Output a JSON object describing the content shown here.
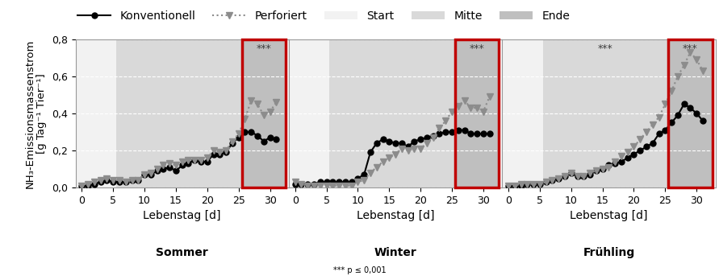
{
  "chart_data": [
    {
      "type": "line",
      "title": "Sommer",
      "x_label": "Lebenstag [d]",
      "y_label": "NH₃-Emissionsmassenstrom\n[g Tag⁻¹ Tier⁻¹]",
      "x": [
        0,
        1,
        2,
        3,
        4,
        5,
        6,
        7,
        8,
        9,
        10,
        11,
        12,
        13,
        14,
        15,
        16,
        17,
        18,
        19,
        20,
        21,
        22,
        23,
        24,
        25,
        26,
        27,
        28,
        29,
        30,
        31
      ],
      "series": [
        {
          "name": "Konventionell",
          "color": "#000000",
          "marker": "o",
          "line_style": "solid",
          "values": [
            0.01,
            0.01,
            0.02,
            0.03,
            0.04,
            0.03,
            0.03,
            0.03,
            0.04,
            0.04,
            0.07,
            0.07,
            0.09,
            0.1,
            0.11,
            0.09,
            0.12,
            0.13,
            0.15,
            0.14,
            0.14,
            0.18,
            0.18,
            0.19,
            0.24,
            0.27,
            0.3,
            0.3,
            0.28,
            0.25,
            0.27,
            0.26
          ]
        },
        {
          "name": "Perforiert",
          "color": "#8c8c8c",
          "marker": "v",
          "line_style": "dotted",
          "values": [
            0.01,
            0.02,
            0.03,
            0.04,
            0.05,
            0.04,
            0.04,
            0.03,
            0.04,
            0.04,
            0.07,
            0.08,
            0.1,
            0.12,
            0.13,
            0.12,
            0.14,
            0.15,
            0.15,
            0.15,
            0.16,
            0.2,
            0.19,
            0.2,
            0.25,
            0.29,
            0.37,
            0.47,
            0.45,
            0.39,
            0.41,
            0.46
          ]
        }
      ],
      "phases": [
        {
          "name": "Start",
          "color": "#f2f2f2",
          "start": -1,
          "end": 5.5
        },
        {
          "name": "Mitte",
          "color": "#d9d9d9",
          "start": 5.5,
          "end": 25.5
        },
        {
          "name": "Ende",
          "color": "#bfbfbf",
          "start": 25.5,
          "end": 32.5
        }
      ],
      "annotations": [
        {
          "text": "***",
          "phase": "Ende"
        }
      ],
      "xlim": [
        -1,
        33
      ],
      "xticks": [
        0,
        5,
        10,
        15,
        20,
        25,
        30
      ],
      "ylim": [
        0,
        0.8
      ],
      "yticks": [
        {
          "value": 0,
          "label": "0,0"
        },
        {
          "value": 0.2,
          "label": "0,2"
        },
        {
          "value": 0.4,
          "label": "0,4"
        },
        {
          "value": 0.6,
          "label": "0,6"
        },
        {
          "value": 0.8,
          "label": "0,8"
        }
      ],
      "grid": true,
      "legend": "upper center",
      "tick_labels": true
    },
    {
      "type": "line",
      "title": "Winter",
      "x_label": "Lebenstag [d]",
      "x": [
        0,
        1,
        2,
        3,
        4,
        5,
        6,
        7,
        8,
        9,
        10,
        11,
        12,
        13,
        14,
        15,
        16,
        17,
        18,
        19,
        20,
        21,
        22,
        23,
        24,
        25,
        26,
        27,
        28,
        29,
        30,
        31
      ],
      "series": [
        {
          "name": "Konventionell",
          "color": "#000000",
          "marker": "o",
          "line_style": "solid",
          "values": [
            0.02,
            0.02,
            0.02,
            0.02,
            0.03,
            0.03,
            0.03,
            0.03,
            0.03,
            0.03,
            0.05,
            0.07,
            0.19,
            0.24,
            0.26,
            0.25,
            0.24,
            0.24,
            0.22,
            0.25,
            0.26,
            0.27,
            0.28,
            0.29,
            0.3,
            0.3,
            0.31,
            0.31,
            0.29,
            0.29,
            0.29,
            0.29
          ]
        },
        {
          "name": "Perforiert",
          "color": "#8c8c8c",
          "marker": "v",
          "line_style": "dotted",
          "values": [
            0.03,
            0.02,
            0.01,
            0.01,
            0.01,
            0.01,
            0.01,
            0.01,
            0.01,
            0.01,
            0.03,
            0.04,
            0.08,
            0.11,
            0.14,
            0.16,
            0.18,
            0.21,
            0.2,
            0.21,
            0.21,
            0.24,
            0.27,
            0.32,
            0.36,
            0.41,
            0.44,
            0.47,
            0.43,
            0.43,
            0.41,
            0.49
          ]
        }
      ],
      "phases": [
        {
          "name": "Start",
          "color": "#f2f2f2",
          "start": -1,
          "end": 5.5
        },
        {
          "name": "Mitte",
          "color": "#d9d9d9",
          "start": 5.5,
          "end": 25.5
        },
        {
          "name": "Ende",
          "color": "#bfbfbf",
          "start": 25.5,
          "end": 32.5
        }
      ],
      "annotations": [
        {
          "text": "***",
          "phase": "Ende"
        }
      ],
      "xlim": [
        -1,
        33
      ],
      "xticks": [
        0,
        5,
        10,
        15,
        20,
        25,
        30
      ],
      "ylim": [
        0,
        0.8
      ],
      "yticks": [
        {
          "value": 0,
          "label": "0,0"
        },
        {
          "value": 0.2,
          "label": "0,2"
        },
        {
          "value": 0.4,
          "label": "0,4"
        },
        {
          "value": 0.6,
          "label": "0,6"
        },
        {
          "value": 0.8,
          "label": "0,8"
        }
      ],
      "grid": true,
      "tick_labels": "x"
    },
    {
      "type": "line",
      "title": "Frühling",
      "x_label": "Lebenstag [d]",
      "x": [
        0,
        1,
        2,
        3,
        4,
        5,
        6,
        7,
        8,
        9,
        10,
        11,
        12,
        13,
        14,
        15,
        16,
        17,
        18,
        19,
        20,
        21,
        22,
        23,
        24,
        25,
        26,
        27,
        28,
        29,
        30,
        31
      ],
      "series": [
        {
          "name": "Konventionell",
          "color": "#000000",
          "marker": "o",
          "line_style": "solid",
          "values": [
            0.01,
            0.01,
            0.01,
            0.02,
            0.02,
            0.02,
            0.03,
            0.04,
            0.05,
            0.06,
            0.08,
            0.06,
            0.06,
            0.07,
            0.09,
            0.1,
            0.12,
            0.13,
            0.14,
            0.16,
            0.18,
            0.2,
            0.22,
            0.24,
            0.29,
            0.31,
            0.35,
            0.39,
            0.45,
            0.43,
            0.4,
            0.36
          ]
        },
        {
          "name": "Perforiert",
          "color": "#8c8c8c",
          "marker": "v",
          "line_style": "dotted",
          "values": [
            0.01,
            0.01,
            0.02,
            0.02,
            0.02,
            0.02,
            0.03,
            0.04,
            0.05,
            0.06,
            0.08,
            0.06,
            0.06,
            0.08,
            0.09,
            0.1,
            0.11,
            0.14,
            0.17,
            0.19,
            0.22,
            0.26,
            0.3,
            0.34,
            0.38,
            0.45,
            0.52,
            0.6,
            0.66,
            0.73,
            0.69,
            0.63
          ]
        }
      ],
      "phases": [
        {
          "name": "Start",
          "color": "#f2f2f2",
          "start": -1,
          "end": 5.5
        },
        {
          "name": "Mitte",
          "color": "#d9d9d9",
          "start": 5.5,
          "end": 25.5
        },
        {
          "name": "Ende",
          "color": "#bfbfbf",
          "start": 25.5,
          "end": 32.5
        }
      ],
      "annotations": [
        {
          "text": "***",
          "phase": "Mitte"
        },
        {
          "text": "***",
          "phase": "Ende"
        }
      ],
      "xlim": [
        -1,
        33
      ],
      "xticks": [
        0,
        5,
        10,
        15,
        20,
        25,
        30
      ],
      "ylim": [
        0,
        0.8
      ],
      "yticks": [
        {
          "value": 0,
          "label": "0,0"
        },
        {
          "value": 0.2,
          "label": "0,2"
        },
        {
          "value": 0.4,
          "label": "0,4"
        },
        {
          "value": 0.6,
          "label": "0,6"
        },
        {
          "value": 0.8,
          "label": "0,8"
        }
      ],
      "grid": true,
      "tick_labels": "x"
    }
  ],
  "footnote": "*** p ≤ 0,001"
}
